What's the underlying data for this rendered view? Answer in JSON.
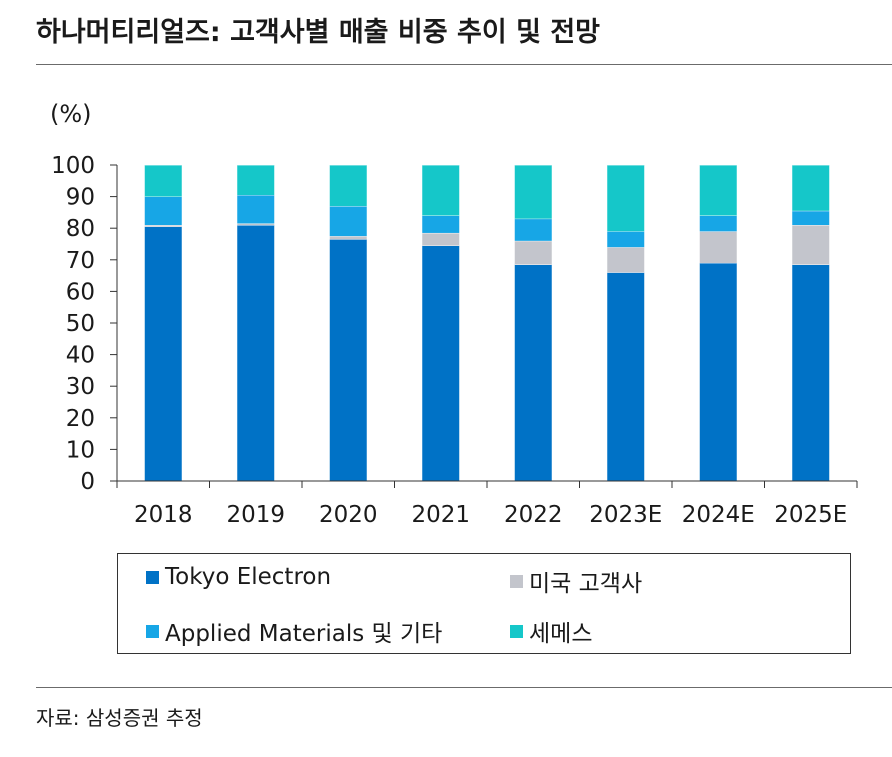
{
  "title": "하나머티리얼즈: 고객사별 매출 비중 추이 및 전망",
  "unit_label": "(%)",
  "source": "자료: 삼성증권 추정",
  "colors": {
    "tokyo_electron": "#0072c6",
    "us_customers": "#c3c5cc",
    "applied_materials": "#17a6e6",
    "semes": "#15c7c9"
  },
  "chart_data": {
    "type": "bar",
    "stacked": true,
    "title": "하나머티리얼즈: 고객사별 매출 비중 추이 및 전망",
    "ylabel": "(%)",
    "xlabel": "",
    "ylim": [
      0,
      100
    ],
    "yticks": [
      0,
      10,
      20,
      30,
      40,
      50,
      60,
      70,
      80,
      90,
      100
    ],
    "categories": [
      "2018",
      "2019",
      "2020",
      "2021",
      "2022",
      "2023E",
      "2024E",
      "2025E"
    ],
    "series": [
      {
        "name": "Tokyo Electron",
        "color_key": "tokyo_electron",
        "values": [
          80.5,
          81,
          76.5,
          74.5,
          68.5,
          66,
          69,
          68.5
        ]
      },
      {
        "name": "미국 고객사",
        "color_key": "us_customers",
        "values": [
          0.5,
          0.5,
          1,
          4,
          7.5,
          8,
          10,
          12.5
        ]
      },
      {
        "name": "Applied Materials 및 기타",
        "color_key": "applied_materials",
        "values": [
          9,
          9,
          9.5,
          5.5,
          7,
          5,
          5,
          4.5
        ]
      },
      {
        "name": "세메스",
        "color_key": "semes",
        "values": [
          10,
          9.5,
          13,
          16,
          17,
          21,
          16,
          14.5
        ]
      }
    ],
    "legend_position": "bottom"
  },
  "legend": {
    "items": [
      {
        "label": "Tokyo Electron",
        "color_key": "tokyo_electron"
      },
      {
        "label": "미국 고객사",
        "color_key": "us_customers"
      },
      {
        "label": "Applied Materials 및 기타",
        "color_key": "applied_materials"
      },
      {
        "label": "세메스",
        "color_key": "semes"
      }
    ]
  }
}
